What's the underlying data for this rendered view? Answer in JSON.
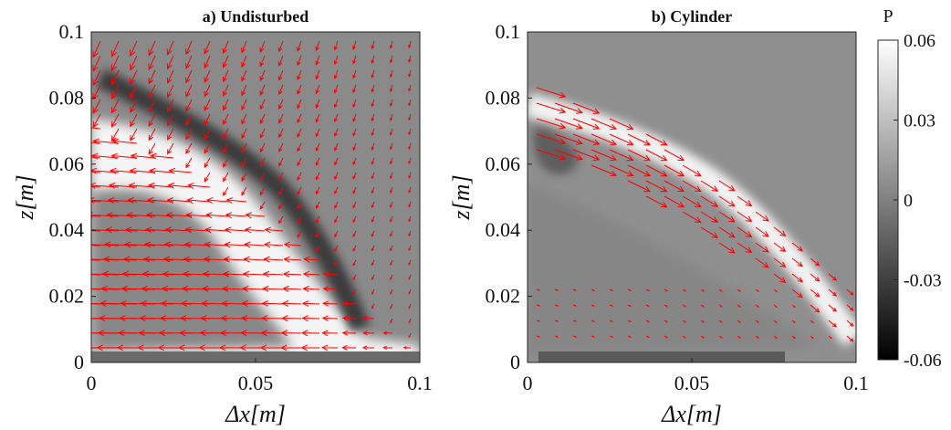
{
  "chart_data": [
    {
      "type": "heatmap",
      "title": "a) Undisturbed",
      "xlabel": "Δx[m]",
      "ylabel": "z[m]",
      "xlim": [
        0,
        0.1
      ],
      "ylim": [
        0,
        0.1
      ],
      "xticks": [
        "0",
        "0.05",
        "0.1"
      ],
      "yticks": [
        "0",
        "0.02",
        "0.04",
        "0.06",
        "0.08",
        "0.1"
      ],
      "overlay": "velocity vector field (red arrows)",
      "arrow_color": "#ff0000",
      "features": {
        "dark_band": [
          [
            0.0,
            0.09
          ],
          [
            0.03,
            0.072
          ],
          [
            0.055,
            0.058
          ],
          [
            0.065,
            0.04
          ],
          [
            0.075,
            0.025
          ],
          [
            0.085,
            0.012
          ]
        ],
        "bright_band": [
          [
            0.0,
            0.075
          ],
          [
            0.03,
            0.062
          ],
          [
            0.05,
            0.05
          ],
          [
            0.06,
            0.035
          ],
          [
            0.07,
            0.02
          ],
          [
            0.08,
            0.008
          ]
        ]
      }
    },
    {
      "type": "heatmap",
      "title": "b) Cylinder",
      "xlabel": "Δx[m]",
      "ylabel": "z[m]",
      "xlim": [
        0,
        0.1
      ],
      "ylim": [
        0,
        0.1
      ],
      "xticks": [
        "0",
        "0.05",
        "0.1"
      ],
      "yticks": [
        "0",
        "0.02",
        "0.04",
        "0.06",
        "0.08",
        "0.1"
      ],
      "overlay": "velocity vector field (red arrows)",
      "arrow_color": "#ff0000",
      "features": {
        "bright_band": [
          [
            0.0,
            0.074
          ],
          [
            0.02,
            0.066
          ],
          [
            0.04,
            0.058
          ],
          [
            0.06,
            0.046
          ],
          [
            0.075,
            0.034
          ],
          [
            0.09,
            0.018
          ],
          [
            0.098,
            0.008
          ]
        ]
      }
    }
  ],
  "colorbar": {
    "label": "P",
    "ticks": [
      "0.06",
      "0.03",
      "0",
      "-0.03",
      "-0.06"
    ],
    "range": [
      -0.06,
      0.06
    ],
    "colormap": "gray"
  }
}
